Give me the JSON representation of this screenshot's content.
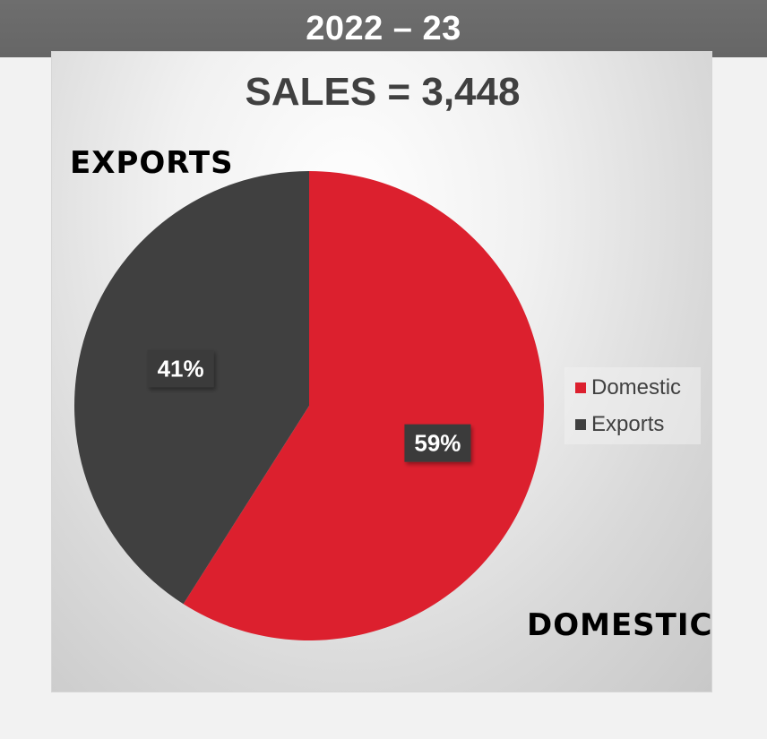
{
  "header": {
    "year_label": "2022 – 23"
  },
  "chart_data": {
    "type": "pie",
    "title": "SALES = 3,448",
    "categories": [
      "Domestic",
      "Exports"
    ],
    "values": [
      59,
      41
    ],
    "value_labels": [
      "59%",
      "41%"
    ],
    "colors": [
      "#dc202e",
      "#404040"
    ],
    "legend": {
      "placement": "right",
      "entries": [
        "Domestic",
        "Exports"
      ]
    },
    "annotations": [
      "EXPORTS",
      "DOMESTIC"
    ]
  }
}
